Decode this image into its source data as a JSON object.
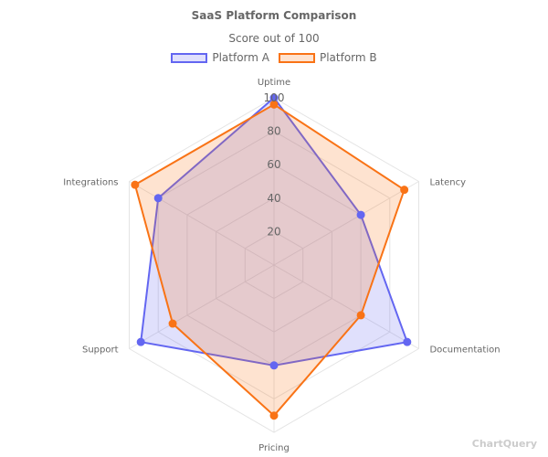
{
  "chart_data": {
    "type": "radar",
    "title": "SaaS Platform Comparison",
    "subtitle": "Score out of 100",
    "axes": [
      "Uptime",
      "Latency",
      "Documentation",
      "Pricing",
      "Support",
      "Integrations"
    ],
    "r_range": [
      0,
      100
    ],
    "r_ticks": [
      "20",
      "40",
      "60",
      "80",
      "100"
    ],
    "legend_position": "top",
    "grid": true,
    "series": [
      {
        "name": "Platform A",
        "values": [
          100,
          60,
          92,
          60,
          92,
          80
        ],
        "color": "#6366f1",
        "fill": "rgba(99,102,241,0.2)"
      },
      {
        "name": "Platform B",
        "values": [
          96,
          90,
          60,
          90,
          70,
          96
        ],
        "color": "#f97316",
        "fill": "rgba(249,115,22,0.2)"
      }
    ]
  },
  "watermark": "ChartQuery"
}
